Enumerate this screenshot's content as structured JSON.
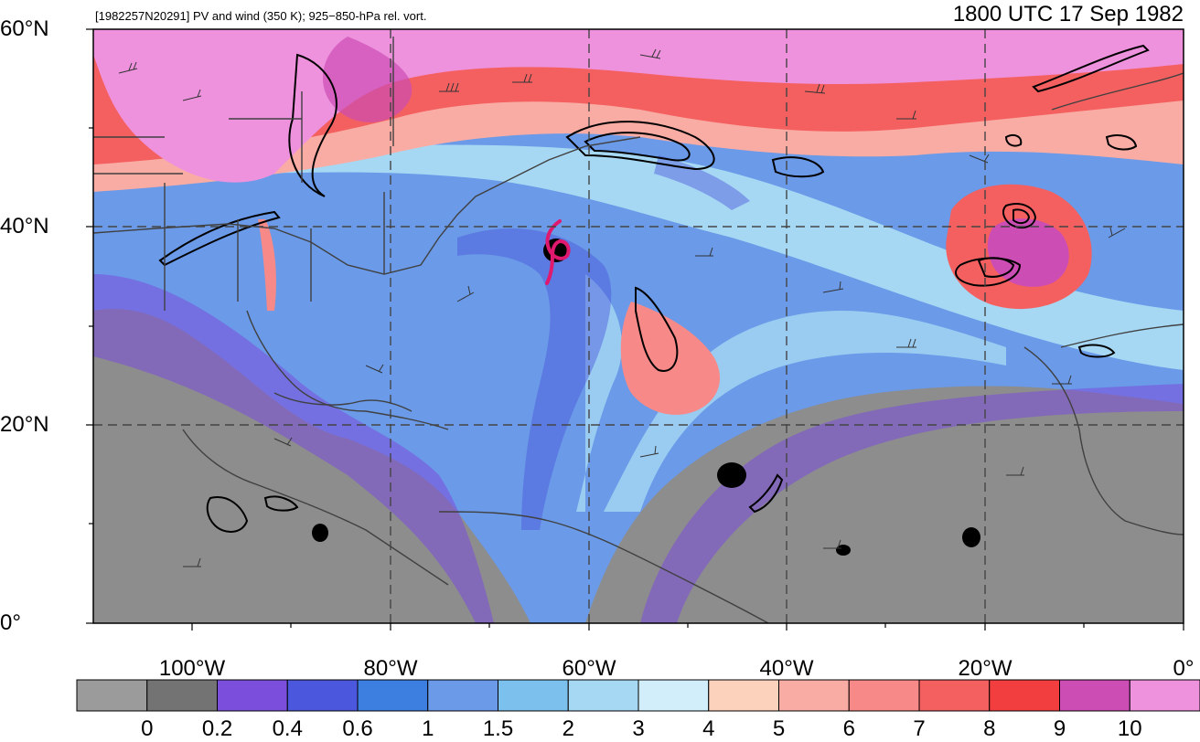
{
  "subtitle": "[1982257N20291] PV and wind (350 K); 925−850-hPa rel. vort.",
  "title": "1800 UTC 17 Sep 1982",
  "lat_labels": [
    "60°N",
    "40°N",
    "20°N",
    "0°"
  ],
  "lon_labels": [
    "100°W",
    "80°W",
    "60°W",
    "40°W",
    "20°W",
    "0°"
  ],
  "colorbar": {
    "colors": [
      "#9b9b9b",
      "#737373",
      "#7b4fdc",
      "#4b57dc",
      "#3d7fe0",
      "#6a9ae8",
      "#7cc0ee",
      "#a6d8f4",
      "#d2eefb",
      "#fcd2bc",
      "#f9aca4",
      "#f78a88",
      "#f46060",
      "#f23e3e",
      "#cc4db4",
      "#ee92de"
    ],
    "labels": [
      "0",
      "0.2",
      "0.4",
      "0.6",
      "1",
      "1.5",
      "2",
      "3",
      "4",
      "5",
      "6",
      "7",
      "8",
      "9",
      "10"
    ]
  },
  "storm_symbol_color": "#e0196e"
}
